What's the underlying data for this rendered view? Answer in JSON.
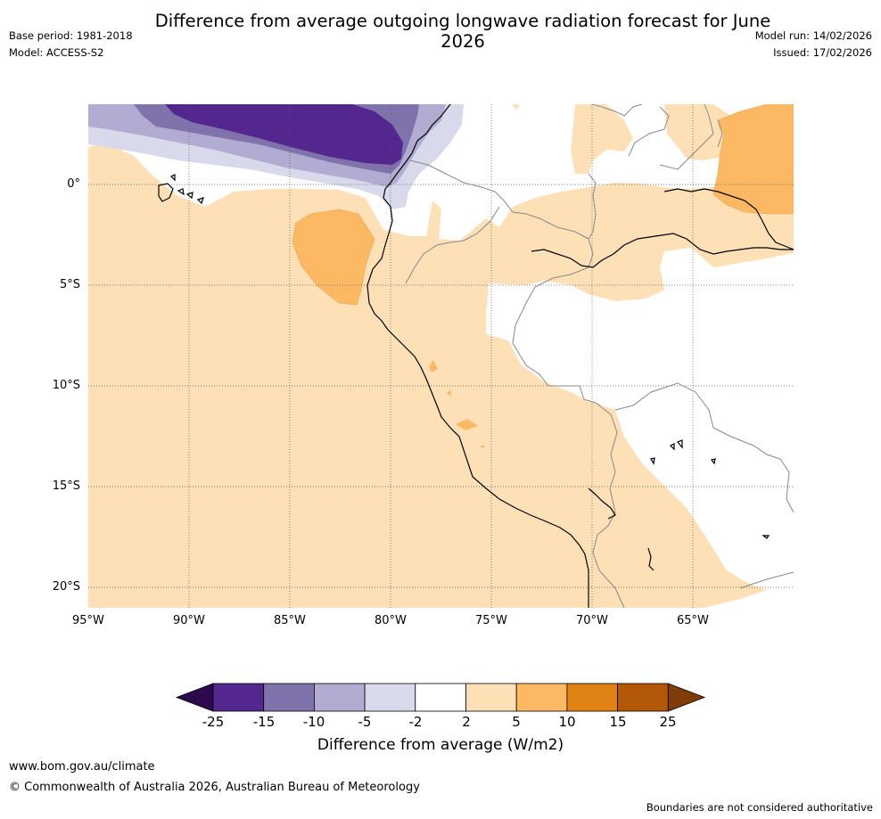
{
  "title": "Difference from average outgoing longwave radiation forecast for June 2026",
  "header": {
    "base_period": "Base period: 1981-2018",
    "model": "Model: ACCESS-S2",
    "model_run": "Model run: 14/02/2026",
    "issued": "Issued: 17/02/2026"
  },
  "map": {
    "lat_labels": [
      "0°",
      "5°S",
      "10°S",
      "15°S",
      "20°S"
    ],
    "lon_labels": [
      "95°W",
      "90°W",
      "85°W",
      "80°W",
      "75°W",
      "70°W",
      "65°W"
    ]
  },
  "colorbar": {
    "title": "Difference from average (W/m2)",
    "tick_labels": [
      "-25",
      "-15",
      "-10",
      "-5",
      "-2",
      "2",
      "5",
      "10",
      "15",
      "25"
    ],
    "colors": [
      "#2d0a4e",
      "#54278f",
      "#8073ac",
      "#b2abd2",
      "#d8daeb",
      "#ffffff",
      "#fee0b6",
      "#fdb863",
      "#e08214",
      "#b35806",
      "#7f3b08"
    ]
  },
  "footer": {
    "url": "www.bom.gov.au/climate",
    "copyright": "© Commonwealth of Australia 2026, Australian Bureau of Meteorology",
    "disclaimer": "Boundaries are not considered authoritative"
  }
}
